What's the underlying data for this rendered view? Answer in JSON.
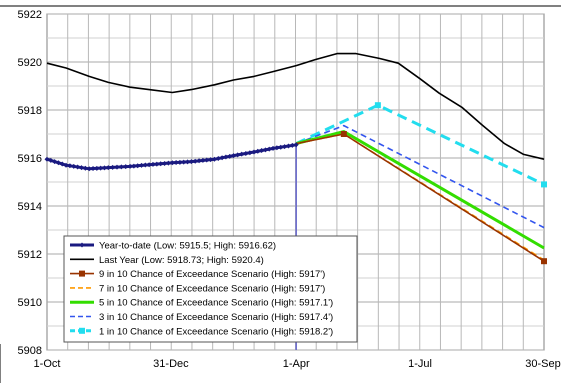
{
  "chart_data": {
    "type": "line",
    "x_axis": {
      "type": "date",
      "range": [
        "2011-10-01",
        "2012-09-30"
      ],
      "tick_labels": [
        {
          "date": "2011-10-01",
          "label": "1-Oct"
        },
        {
          "date": "2011-12-31",
          "label": "31-Dec"
        },
        {
          "date": "2012-04-01",
          "label": "1-Apr"
        },
        {
          "date": "2012-07-01",
          "label": "1-Jul"
        },
        {
          "date": "2012-09-30",
          "label": "30-Sep"
        }
      ]
    },
    "y_axis": {
      "range": [
        5908,
        5922
      ],
      "tick_labels": [
        "5908",
        "5910",
        "5912",
        "5914",
        "5916",
        "5918",
        "5920",
        "5922"
      ]
    },
    "grid": true,
    "vertical_marker_date": "2012-04-01",
    "legend_position": "bottom-left",
    "series": [
      {
        "name": "Year-to-date (Low: 5915.5; High: 5916.62)",
        "color": "#1a1a80",
        "style": "solid-thick",
        "marker": "diamond",
        "points": [
          [
            "2011-10-01",
            5915.95
          ],
          [
            "2011-10-15",
            5915.7
          ],
          [
            "2011-11-01",
            5915.55
          ],
          [
            "2011-11-15",
            5915.6
          ],
          [
            "2011-12-01",
            5915.65
          ],
          [
            "2011-12-15",
            5915.72
          ],
          [
            "2012-01-01",
            5915.8
          ],
          [
            "2012-01-15",
            5915.85
          ],
          [
            "2012-02-01",
            5915.95
          ],
          [
            "2012-02-15",
            5916.1
          ],
          [
            "2012-03-01",
            5916.25
          ],
          [
            "2012-03-15",
            5916.4
          ],
          [
            "2012-04-01",
            5916.55
          ]
        ]
      },
      {
        "name": "Last Year (Low: 5918.73; High: 5920.4)",
        "color": "#000000",
        "style": "solid",
        "marker": "none",
        "points": [
          [
            "2011-10-01",
            5919.95
          ],
          [
            "2011-10-15",
            5919.75
          ],
          [
            "2011-11-01",
            5919.4
          ],
          [
            "2011-11-15",
            5919.15
          ],
          [
            "2011-12-01",
            5918.95
          ],
          [
            "2011-12-15",
            5918.85
          ],
          [
            "2012-01-01",
            5918.73
          ],
          [
            "2012-01-15",
            5918.85
          ],
          [
            "2012-02-01",
            5919.05
          ],
          [
            "2012-02-15",
            5919.25
          ],
          [
            "2012-03-01",
            5919.4
          ],
          [
            "2012-03-15",
            5919.6
          ],
          [
            "2012-04-01",
            5919.85
          ],
          [
            "2012-04-15",
            5920.1
          ],
          [
            "2012-05-01",
            5920.35
          ],
          [
            "2012-05-15",
            5920.35
          ],
          [
            "2012-06-01",
            5920.15
          ],
          [
            "2012-06-15",
            5919.95
          ],
          [
            "2012-07-01",
            5919.3
          ],
          [
            "2012-07-15",
            5918.7
          ],
          [
            "2012-08-01",
            5918.1
          ],
          [
            "2012-08-15",
            5917.4
          ],
          [
            "2012-09-01",
            5916.6
          ],
          [
            "2012-09-15",
            5916.15
          ],
          [
            "2012-09-30",
            5915.95
          ]
        ]
      },
      {
        "name": "9 in 10 Chance of Exceedance Scenario (High: 5917')",
        "color": "#993300",
        "style": "solid",
        "marker": "square",
        "points": [
          [
            "2012-04-01",
            5916.6
          ],
          [
            "2012-05-06",
            5917.0
          ],
          [
            "2012-09-30",
            5911.7
          ]
        ]
      },
      {
        "name": "7 in 10 Chance of Exceedance Scenario (High: 5917')",
        "color": "#ff9900",
        "style": "dashed",
        "marker": "none",
        "points": [
          [
            "2012-04-01",
            5916.6
          ],
          [
            "2012-05-06",
            5917.0
          ],
          [
            "2012-09-30",
            5911.75
          ]
        ]
      },
      {
        "name": "5 in 10 Chance of Exceedance Scenario (High: 5917.1')",
        "color": "#33dd00",
        "style": "solid-thick",
        "marker": "none",
        "points": [
          [
            "2012-04-01",
            5916.6
          ],
          [
            "2012-05-06",
            5917.1
          ],
          [
            "2012-09-30",
            5912.25
          ]
        ]
      },
      {
        "name": "3 in 10 Chance of Exceedance Scenario (High: 5917.4')",
        "color": "#3355ee",
        "style": "dashed",
        "marker": "none",
        "points": [
          [
            "2012-04-01",
            5916.6
          ],
          [
            "2012-05-06",
            5917.35
          ],
          [
            "2012-09-30",
            5913.1
          ]
        ]
      },
      {
        "name": "1 in 10 Chance of Exceedance Scenario (High: 5918.2')",
        "color": "#22ddee",
        "style": "dashed-thick",
        "marker": "square",
        "points": [
          [
            "2012-04-01",
            5916.6
          ],
          [
            "2012-05-31",
            5918.2
          ],
          [
            "2012-09-30",
            5914.9
          ]
        ]
      }
    ]
  }
}
